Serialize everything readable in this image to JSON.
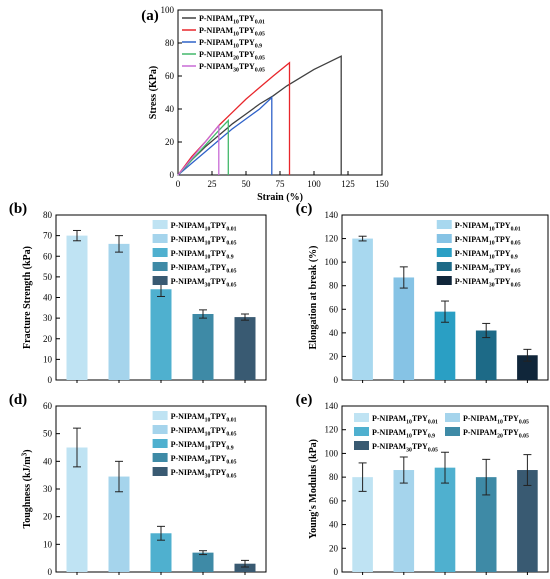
{
  "chart_data": [
    {
      "id": "a",
      "panel_label": "(a)",
      "type": "line",
      "xlabel": "Strain (%)",
      "ylabel": "Stress (KPa)",
      "xlim": [
        0,
        150
      ],
      "ylim": [
        0,
        100
      ],
      "xticks": [
        0,
        25,
        50,
        75,
        100,
        125,
        150
      ],
      "yticks": [
        0,
        20,
        40,
        60,
        80,
        100
      ],
      "legend_position": "top-left",
      "series": [
        {
          "name_parts": [
            [
              "P-NIPAM",
              false
            ],
            [
              "10",
              true
            ],
            [
              "TPY",
              false
            ],
            [
              "0.01",
              true
            ]
          ],
          "color": "#404040",
          "points": [
            [
              0,
              0
            ],
            [
              10,
              9
            ],
            [
              20,
              17
            ],
            [
              30,
              24
            ],
            [
              40,
              31
            ],
            [
              50,
              37
            ],
            [
              60,
              43
            ],
            [
              70,
              48
            ],
            [
              80,
              54
            ],
            [
              90,
              59
            ],
            [
              100,
              64
            ],
            [
              110,
              68
            ],
            [
              120,
              72
            ],
            [
              120,
              0
            ]
          ]
        },
        {
          "name_parts": [
            [
              "P-NIPAM",
              false
            ],
            [
              "10",
              true
            ],
            [
              "TPY",
              false
            ],
            [
              "0.05",
              true
            ]
          ],
          "color": "#e8262b",
          "points": [
            [
              0,
              0
            ],
            [
              10,
              11
            ],
            [
              20,
              20
            ],
            [
              30,
              30
            ],
            [
              40,
              38
            ],
            [
              50,
              46
            ],
            [
              60,
              53
            ],
            [
              70,
              60
            ],
            [
              82,
              68
            ],
            [
              82,
              0
            ]
          ]
        },
        {
          "name_parts": [
            [
              "P-NIPAM",
              false
            ],
            [
              "10",
              true
            ],
            [
              "TPY",
              false
            ],
            [
              "0.9",
              true
            ]
          ],
          "color": "#2f62c9",
          "points": [
            [
              0,
              0
            ],
            [
              10,
              7
            ],
            [
              20,
              14
            ],
            [
              30,
              21
            ],
            [
              40,
              28
            ],
            [
              50,
              34
            ],
            [
              60,
              40
            ],
            [
              69,
              47
            ],
            [
              69,
              0
            ]
          ]
        },
        {
          "name_parts": [
            [
              "P-NIPAM",
              false
            ],
            [
              "20",
              true
            ],
            [
              "TPY",
              false
            ],
            [
              "0.05",
              true
            ]
          ],
          "color": "#43b86a",
          "points": [
            [
              0,
              0
            ],
            [
              10,
              9
            ],
            [
              20,
              18
            ],
            [
              30,
              27
            ],
            [
              37,
              33
            ],
            [
              37,
              0
            ]
          ]
        },
        {
          "name_parts": [
            [
              "P-NIPAM",
              false
            ],
            [
              "30",
              true
            ],
            [
              "TPY",
              false
            ],
            [
              "0.05",
              true
            ]
          ],
          "color": "#c86ad6",
          "points": [
            [
              0,
              0
            ],
            [
              10,
              10
            ],
            [
              20,
              20
            ],
            [
              30,
              30
            ],
            [
              30,
              0
            ]
          ]
        }
      ]
    },
    {
      "id": "b",
      "panel_label": "(b)",
      "type": "bar",
      "ylabel": "Fracture Strength (kPa)",
      "ylim": [
        0,
        80
      ],
      "yticks": [
        0,
        10,
        20,
        30,
        40,
        50,
        60,
        70,
        80
      ],
      "values": [
        70,
        66,
        44,
        32,
        30.5
      ],
      "errors": [
        2.5,
        4,
        3.5,
        2,
        1.5
      ],
      "colors": [
        "#bfe3f3",
        "#a5d4ec",
        "#4fb0cf",
        "#3e8aa6",
        "#395a72"
      ],
      "legend_position": "top-right",
      "legend_columns": 1,
      "legend": [
        [
          [
            "P-NIPAM",
            false
          ],
          [
            "10",
            true
          ],
          [
            "TPY",
            false
          ],
          [
            "0.01",
            true
          ]
        ],
        [
          [
            "P-NIPAM",
            false
          ],
          [
            "10",
            true
          ],
          [
            "TPY",
            false
          ],
          [
            "0.05",
            true
          ]
        ],
        [
          [
            "P-NIPAM",
            false
          ],
          [
            "10",
            true
          ],
          [
            "TPY",
            false
          ],
          [
            "0.9",
            true
          ]
        ],
        [
          [
            "P-NIPAM",
            false
          ],
          [
            "20",
            true
          ],
          [
            "TPY",
            false
          ],
          [
            "0.05",
            true
          ]
        ],
        [
          [
            "P-NIPAM",
            false
          ],
          [
            "30",
            true
          ],
          [
            "TPY",
            false
          ],
          [
            "0.05",
            true
          ]
        ]
      ]
    },
    {
      "id": "c",
      "panel_label": "(c)",
      "type": "bar",
      "ylabel": "Elongation at break (%)",
      "ylim": [
        0,
        140
      ],
      "yticks": [
        0,
        20,
        40,
        60,
        80,
        100,
        120,
        140
      ],
      "values": [
        120,
        87,
        58,
        42,
        21
      ],
      "errors": [
        2,
        9,
        9,
        6,
        5
      ],
      "colors": [
        "#a8d8ef",
        "#86c3e5",
        "#2a9fc4",
        "#1d6a87",
        "#10263a"
      ],
      "legend_position": "top-right",
      "legend_columns": 1,
      "legend": [
        [
          [
            "P-NIPAM",
            false
          ],
          [
            "10",
            true
          ],
          [
            "TPY",
            false
          ],
          [
            "0.01",
            true
          ]
        ],
        [
          [
            "P-NIPAM",
            false
          ],
          [
            "10",
            true
          ],
          [
            "TPY",
            false
          ],
          [
            "0.05",
            true
          ]
        ],
        [
          [
            "P-NIPAM",
            false
          ],
          [
            "10",
            true
          ],
          [
            "TPY",
            false
          ],
          [
            "0.9",
            true
          ]
        ],
        [
          [
            "P-NIPAM",
            false
          ],
          [
            "20",
            true
          ],
          [
            "TPY",
            false
          ],
          [
            "0.05",
            true
          ]
        ],
        [
          [
            "P-NIPAM",
            false
          ],
          [
            "30",
            true
          ],
          [
            "TPY",
            false
          ],
          [
            "0.05",
            true
          ]
        ]
      ]
    },
    {
      "id": "d",
      "panel_label": "(d)",
      "type": "bar",
      "ylabel_parts": [
        [
          "Toughness (kJ/m",
          false
        ],
        [
          "3",
          "super"
        ],
        [
          ")",
          false
        ]
      ],
      "ylim": [
        0,
        60
      ],
      "yticks": [
        0,
        10,
        20,
        30,
        40,
        50,
        60
      ],
      "values": [
        45,
        34.5,
        14,
        7,
        3
      ],
      "errors": [
        7,
        5.5,
        2.5,
        0.7,
        1.2
      ],
      "colors": [
        "#bfe3f3",
        "#a5d4ec",
        "#4fb0cf",
        "#3e8aa6",
        "#395a72"
      ],
      "legend_position": "top-right",
      "legend_columns": 1,
      "legend": [
        [
          [
            "P-NIPAM",
            false
          ],
          [
            "10",
            true
          ],
          [
            "TPY",
            false
          ],
          [
            "0.01",
            true
          ]
        ],
        [
          [
            "P-NIPAM",
            false
          ],
          [
            "10",
            true
          ],
          [
            "TPY",
            false
          ],
          [
            "0.05",
            true
          ]
        ],
        [
          [
            "P-NIPAM",
            false
          ],
          [
            "10",
            true
          ],
          [
            "TPY",
            false
          ],
          [
            "0.9",
            true
          ]
        ],
        [
          [
            "P-NIPAM",
            false
          ],
          [
            "20",
            true
          ],
          [
            "TPY",
            false
          ],
          [
            "0.05",
            true
          ]
        ],
        [
          [
            "P-NIPAM",
            false
          ],
          [
            "30",
            true
          ],
          [
            "TPY",
            false
          ],
          [
            "0.05",
            true
          ]
        ]
      ]
    },
    {
      "id": "e",
      "panel_label": "(e)",
      "type": "bar",
      "ylabel": "Young's Modulus (kPa)",
      "ylim": [
        0,
        140
      ],
      "yticks": [
        0,
        20,
        40,
        60,
        80,
        100,
        120,
        140
      ],
      "values": [
        80,
        86,
        88,
        80,
        86
      ],
      "errors": [
        12,
        11,
        13,
        15,
        13
      ],
      "colors": [
        "#bfe3f3",
        "#a5d4ec",
        "#4fb0cf",
        "#3e8aa6",
        "#395a72"
      ],
      "legend_position": "top",
      "legend_columns": 2,
      "legend": [
        [
          [
            "P-NIPAM",
            false
          ],
          [
            "10",
            true
          ],
          [
            "TPY",
            false
          ],
          [
            "0.01",
            true
          ]
        ],
        [
          [
            "P-NIPAM",
            false
          ],
          [
            "10",
            true
          ],
          [
            "TPY",
            false
          ],
          [
            "0.05",
            true
          ]
        ],
        [
          [
            "P-NIPAM",
            false
          ],
          [
            "10",
            true
          ],
          [
            "TPY",
            false
          ],
          [
            "0.9",
            true
          ]
        ],
        [
          [
            "P-NIPAM",
            false
          ],
          [
            "20",
            true
          ],
          [
            "TPY",
            false
          ],
          [
            "0.05",
            true
          ]
        ],
        [
          [
            "P-NIPAM",
            false
          ],
          [
            "30",
            true
          ],
          [
            "TPY",
            false
          ],
          [
            "0.05",
            true
          ]
        ]
      ]
    }
  ]
}
